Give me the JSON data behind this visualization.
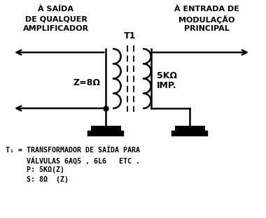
{
  "bg_color": "#ffffff",
  "line_color": "#000000",
  "left_label_lines": [
    "À SAÍDA",
    "DE QUALQUER",
    "AMPLIFICADOR"
  ],
  "right_label_lines": [
    "À ENTRADA DE",
    "MODULAÇÃO",
    "PRINCIPAL"
  ],
  "t1_label": "T1",
  "z_label": "Z=8Ω",
  "imp_label_lines": [
    "5KΩ",
    "IMP."
  ],
  "bottom_line1": "T₁ = TRANSFORMADOR DE SAÍDA PARA",
  "bottom_line2": "     VÁLVULAS 6AQ5 , 6L6   ETC .",
  "bottom_line3": "     P: 5KΩ(Z)",
  "bottom_line4": "     S: 8Ω  (Z)"
}
